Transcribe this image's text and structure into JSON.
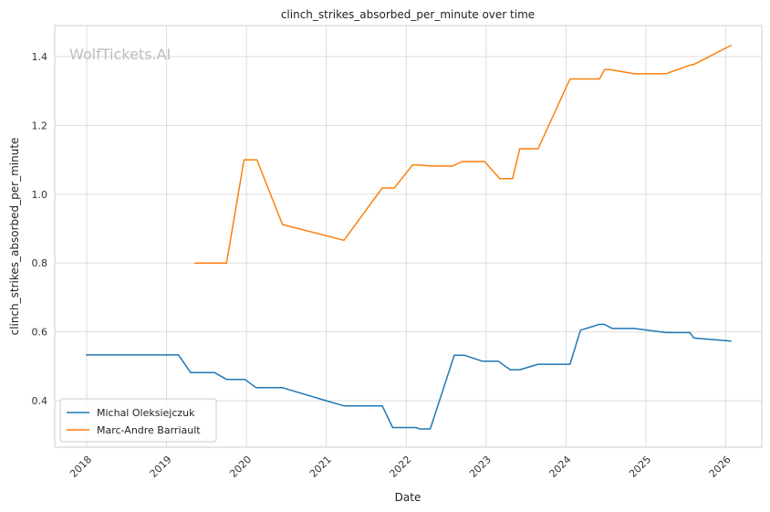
{
  "chart_data": {
    "type": "line",
    "title": "clinch_strikes_absorbed_per_minute over time",
    "xlabel": "Date",
    "ylabel": "clinch_strikes_absorbed_per_minute",
    "watermark": "WolfTickets.AI",
    "xlim": [
      2017.6,
      2026.45
    ],
    "ylim": [
      0.265,
      1.49
    ],
    "x_ticks": [
      2018,
      2019,
      2020,
      2021,
      2022,
      2023,
      2024,
      2025,
      2026
    ],
    "x_tick_labels": [
      "2018",
      "2019",
      "2020",
      "2021",
      "2022",
      "2023",
      "2024",
      "2025",
      "2026"
    ],
    "y_ticks": [
      0.4,
      0.6,
      0.8,
      1.0,
      1.2,
      1.4
    ],
    "y_tick_labels": [
      "0.4",
      "0.6",
      "0.8",
      "1.0",
      "1.2",
      "1.4"
    ],
    "grid": true,
    "legend_position": "lower-left",
    "series": [
      {
        "name": "Michal Oleksiejczuk",
        "color": "#1f77b4",
        "x": [
          2017.99,
          2019.15,
          2019.3,
          2019.6,
          2019.75,
          2019.98,
          2020.12,
          2020.45,
          2021.0,
          2021.22,
          2021.7,
          2021.83,
          2022.12,
          2022.17,
          2022.3,
          2022.6,
          2022.73,
          2022.95,
          2023.15,
          2023.3,
          2023.42,
          2023.65,
          2023.9,
          2024.05,
          2024.18,
          2024.42,
          2024.48,
          2024.58,
          2024.85,
          2025.25,
          2025.55,
          2025.6,
          2026.07
        ],
        "y": [
          0.533,
          0.533,
          0.482,
          0.482,
          0.462,
          0.462,
          0.438,
          0.438,
          0.4,
          0.385,
          0.385,
          0.322,
          0.322,
          0.318,
          0.318,
          0.532,
          0.532,
          0.515,
          0.515,
          0.49,
          0.49,
          0.506,
          0.506,
          0.506,
          0.605,
          0.622,
          0.622,
          0.61,
          0.61,
          0.598,
          0.598,
          0.582,
          0.573
        ]
      },
      {
        "name": "Marc-Andre Barriault",
        "color": "#ff7f0e",
        "x": [
          2019.35,
          2019.75,
          2019.97,
          2020.13,
          2020.45,
          2021.22,
          2021.7,
          2021.85,
          2022.08,
          2022.15,
          2022.3,
          2022.58,
          2022.7,
          2022.98,
          2023.17,
          2023.33,
          2023.42,
          2023.65,
          2024.05,
          2024.42,
          2024.48,
          2024.55,
          2024.85,
          2025.25,
          2025.55,
          2025.6,
          2026.07
        ],
        "y": [
          0.8,
          0.8,
          1.1,
          1.1,
          0.912,
          0.866,
          1.018,
          1.018,
          1.085,
          1.085,
          1.082,
          1.082,
          1.095,
          1.095,
          1.045,
          1.045,
          1.132,
          1.132,
          1.335,
          1.335,
          1.362,
          1.362,
          1.35,
          1.35,
          1.375,
          1.377,
          1.433
        ]
      }
    ]
  }
}
